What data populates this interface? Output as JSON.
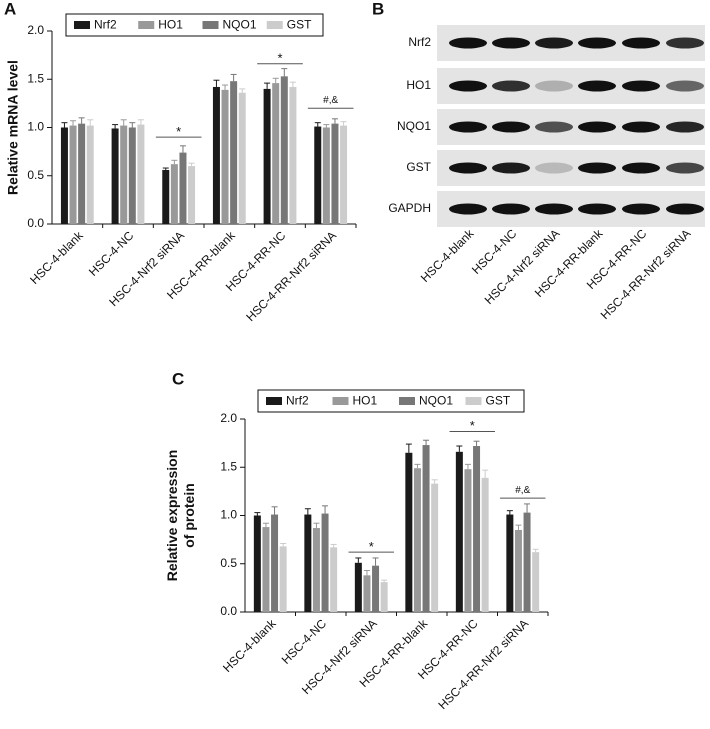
{
  "chart_data": [
    {
      "type": "bar",
      "panel": "A",
      "ylabel": [
        "Relative mRNA level"
      ],
      "categories": [
        "HSC-4-blank",
        "HSC-4-NC",
        "HSC-4-Nrf2 siRNA",
        "HSC-4-RR-blank",
        "HSC-4-RR-NC",
        "HSC-4-RR-Nrf2 siRNA"
      ],
      "series": [
        {
          "name": "Nrf2",
          "color": "#1a1a1a",
          "values": [
            1.0,
            0.99,
            0.56,
            1.42,
            1.4,
            1.01
          ],
          "errors": [
            0.05,
            0.04,
            0.02,
            0.07,
            0.06,
            0.04
          ]
        },
        {
          "name": "HO1",
          "color": "#999999",
          "values": [
            1.02,
            1.02,
            0.62,
            1.39,
            1.46,
            1.0
          ],
          "errors": [
            0.05,
            0.06,
            0.04,
            0.05,
            0.05,
            0.03
          ]
        },
        {
          "name": "NQO1",
          "color": "#777777",
          "values": [
            1.04,
            1.0,
            0.74,
            1.48,
            1.53,
            1.04
          ],
          "errors": [
            0.06,
            0.05,
            0.07,
            0.07,
            0.08,
            0.05
          ]
        },
        {
          "name": "GST",
          "color": "#cccccc",
          "values": [
            1.02,
            1.03,
            0.6,
            1.36,
            1.42,
            1.02
          ],
          "errors": [
            0.06,
            0.05,
            0.03,
            0.04,
            0.05,
            0.04
          ]
        }
      ],
      "ylim": [
        0,
        2
      ],
      "yticks": [
        {
          "value": 0,
          "label": "0.0"
        },
        0.5,
        {
          "value": 1,
          "label": "1.0"
        },
        1.5,
        {
          "value": 2,
          "label": "2.0"
        }
      ],
      "annotations": [
        "*",
        "*",
        "#,&"
      ]
    },
    {
      "type": "bar",
      "panel": "C",
      "ylabel": [
        "Relative expression",
        "of protein"
      ],
      "categories": [
        "HSC-4-blank",
        "HSC-4-NC",
        "HSC-4-Nrf2 siRNA",
        "HSC-4-RR-blank",
        "HSC-4-RR-NC",
        "HSC-4-RR-Nrf2 siRNA"
      ],
      "series": [
        {
          "name": "Nrf2",
          "color": "#1a1a1a",
          "values": [
            1.0,
            1.01,
            0.51,
            1.65,
            1.66,
            1.01
          ],
          "errors": [
            0.03,
            0.06,
            0.05,
            0.09,
            0.06,
            0.04
          ]
        },
        {
          "name": "HO1",
          "color": "#999999",
          "values": [
            0.88,
            0.87,
            0.38,
            1.49,
            1.48,
            0.85
          ],
          "errors": [
            0.04,
            0.05,
            0.05,
            0.04,
            0.05,
            0.05
          ]
        },
        {
          "name": "NQO1",
          "color": "#777777",
          "values": [
            1.01,
            1.02,
            0.48,
            1.73,
            1.72,
            1.03
          ],
          "errors": [
            0.08,
            0.08,
            0.08,
            0.05,
            0.05,
            0.09
          ]
        },
        {
          "name": "GST",
          "color": "#cccccc",
          "values": [
            0.68,
            0.67,
            0.31,
            1.33,
            1.39,
            0.62
          ],
          "errors": [
            0.03,
            0.03,
            0.02,
            0.04,
            0.08,
            0.03
          ]
        }
      ],
      "ylim": [
        0,
        2
      ],
      "yticks": [
        {
          "value": 0,
          "label": "0.0"
        },
        0.5,
        {
          "value": 1,
          "label": "1.0"
        },
        1.5,
        {
          "value": 2,
          "label": "2.0"
        }
      ],
      "annotations": [
        "*",
        "*",
        "#,&"
      ]
    }
  ],
  "blot": {
    "panel": "B",
    "rows": [
      "Nrf2",
      "HO1",
      "NQO1",
      "GST",
      "GAPDH"
    ],
    "lanes": [
      "HSC-4-blank",
      "HSC-4-NC",
      "HSC-4-Nrf2 siRNA",
      "HSC-4-RR-blank",
      "HSC-4-RR-NC",
      "HSC-4-RR-Nrf2 siRNA"
    ]
  }
}
